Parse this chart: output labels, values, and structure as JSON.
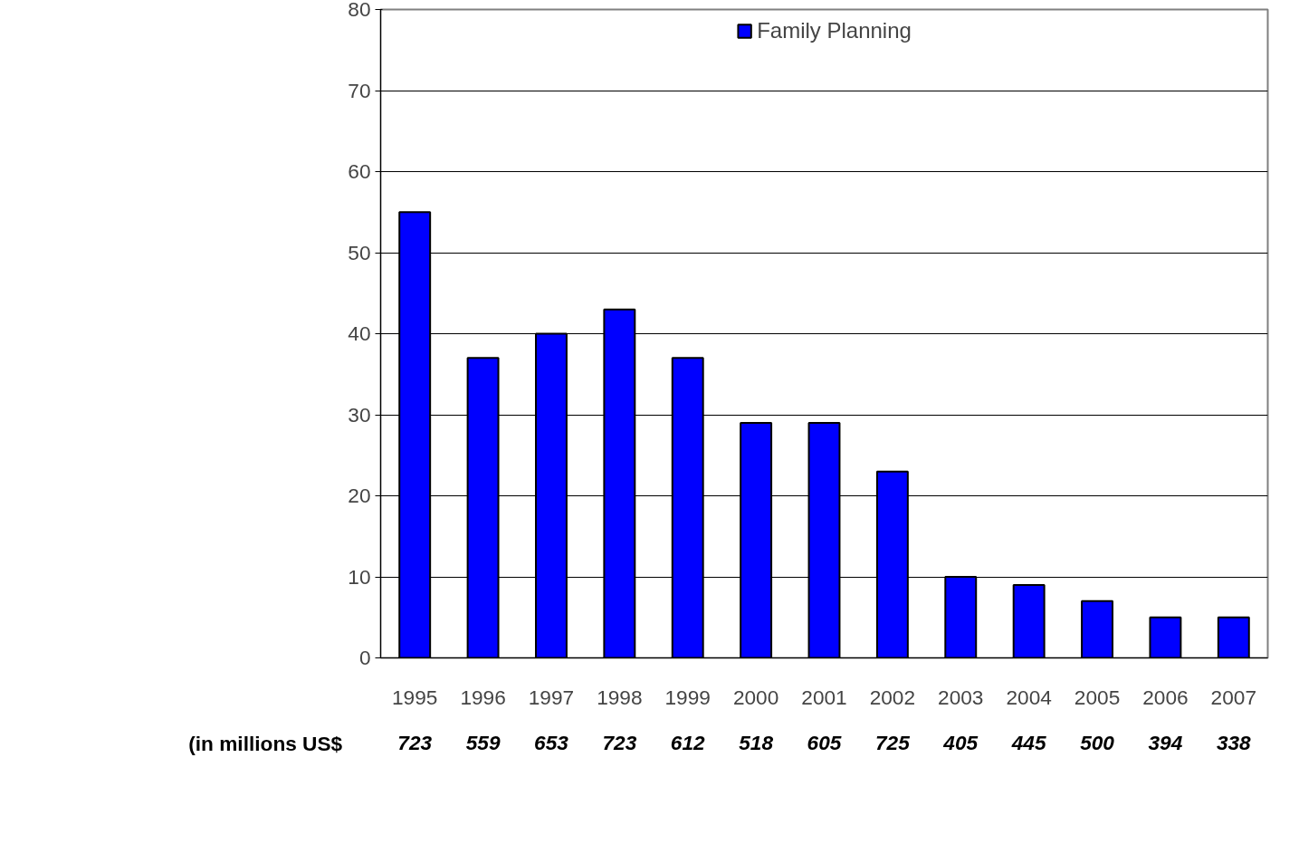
{
  "chart_data": {
    "type": "bar",
    "categories": [
      "1995",
      "1996",
      "1997",
      "1998",
      "1999",
      "2000",
      "2001",
      "2002",
      "2003",
      "2004",
      "2005",
      "2006",
      "2007"
    ],
    "series": [
      {
        "name": "Family Planning",
        "color": "#0000ff",
        "values": [
          55,
          37,
          40,
          43,
          37,
          29,
          29,
          23,
          10,
          9,
          7,
          5,
          5
        ]
      }
    ],
    "ylim": [
      0,
      80
    ],
    "yticks": [
      0,
      10,
      20,
      30,
      40,
      50,
      60,
      70,
      80
    ],
    "grid": "y",
    "legend": "top",
    "annotations": [
      "(in millions  US$",
      "723",
      "559",
      "653",
      "723",
      "612",
      "518",
      "605",
      "725",
      "405",
      "445",
      "500",
      "394",
      "338"
    ]
  }
}
